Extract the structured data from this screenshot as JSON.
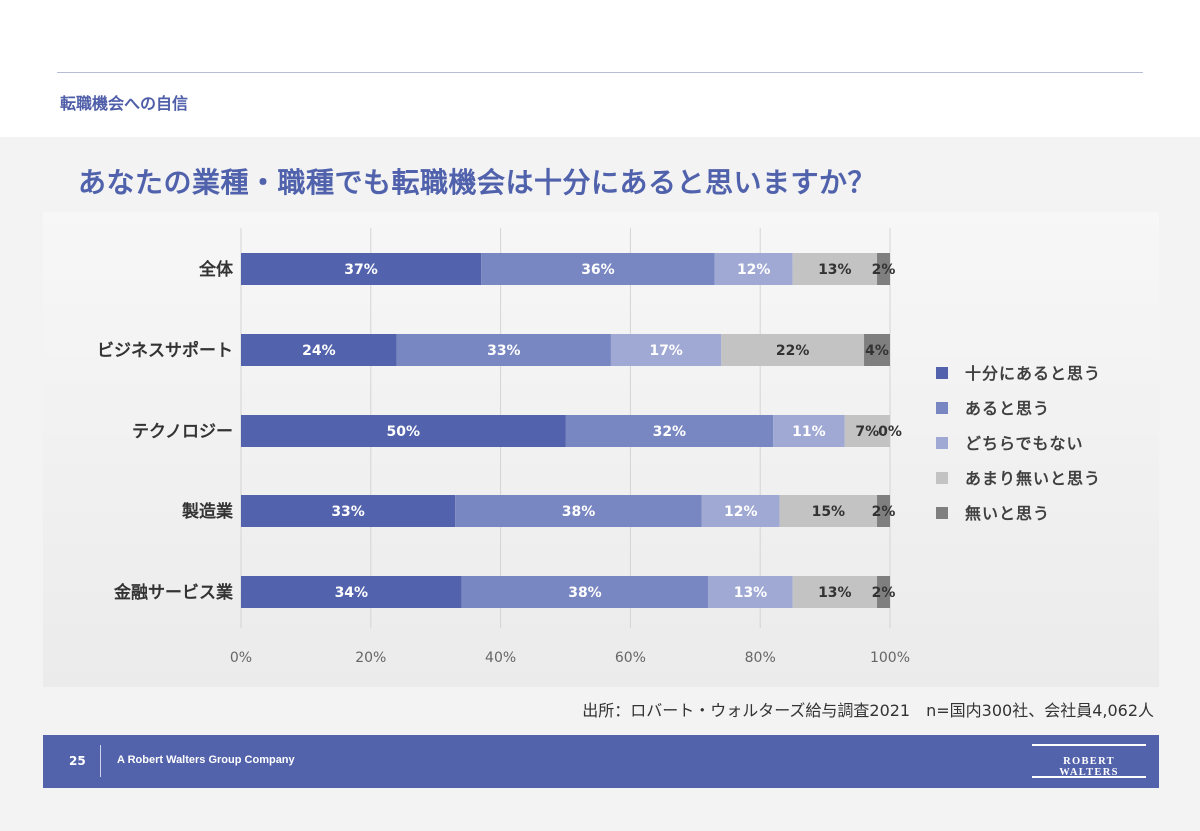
{
  "header": {
    "section_title": "転職機会への自信"
  },
  "question": "あなたの業種・職種でも転職機会は十分にあると思いますか？",
  "source_note": "出所：ロバート・ウォルターズ給与調査2021　n=国内300社、会社員4,062人",
  "footer": {
    "page_number": "25",
    "company": "A Robert Walters Group Company",
    "logo_text": "ROBERT WALTERS"
  },
  "colors": [
    "#5362ac",
    "#7886c1",
    "#a0a8d4",
    "#c3c3c3",
    "#7f7f7f"
  ],
  "label_colors": [
    "#ffffff",
    "#ffffff",
    "#ffffff",
    "#333333",
    "#333333"
  ],
  "chart_data": {
    "type": "bar",
    "orientation": "horizontal-stacked-100",
    "categories": [
      "全体",
      "ビジネスサポート",
      "テクノロジー",
      "製造業",
      "金融サービス業"
    ],
    "series": [
      {
        "name": "十分にあると思う",
        "values": [
          37,
          24,
          50,
          33,
          34
        ]
      },
      {
        "name": "あると思う",
        "values": [
          36,
          33,
          32,
          38,
          38
        ]
      },
      {
        "name": "どちらでもない",
        "values": [
          12,
          17,
          11,
          12,
          13
        ]
      },
      {
        "name": "あまり無いと思う",
        "values": [
          13,
          22,
          7,
          15,
          13
        ]
      },
      {
        "name": "無いと思う",
        "values": [
          2,
          4,
          0,
          2,
          2
        ]
      }
    ],
    "data_labels": [
      [
        "37%",
        "36%",
        "12%",
        "13%",
        "2%"
      ],
      [
        "24%",
        "33%",
        "17%",
        "22%",
        "4%"
      ],
      [
        "50%",
        "32%",
        "11%",
        "7%",
        "0%"
      ],
      [
        "33%",
        "38%",
        "12%",
        "15%",
        "2%"
      ],
      [
        "34%",
        "38%",
        "13%",
        "13%",
        "2%"
      ]
    ],
    "x_ticks": [
      "0%",
      "20%",
      "40%",
      "60%",
      "80%",
      "100%"
    ],
    "xlim": [
      0,
      100
    ],
    "grid": true,
    "legend": "right"
  }
}
